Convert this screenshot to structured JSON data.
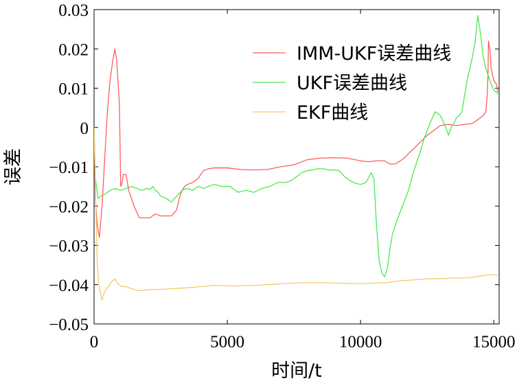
{
  "chart_data": {
    "type": "line",
    "title": "",
    "xlabel": "时间/t",
    "ylabel": "误差",
    "xlim": [
      0,
      15200
    ],
    "ylim": [
      -0.05,
      0.03
    ],
    "xticks": [
      0,
      5000,
      10000,
      15000
    ],
    "xtick_labels": [
      "0",
      "5000",
      "10000",
      "15000"
    ],
    "yticks": [
      0.03,
      0.02,
      0.01,
      0,
      -0.01,
      -0.02,
      -0.03,
      -0.04,
      -0.05
    ],
    "ytick_labels": [
      "0.03",
      "0.02",
      "0.01",
      "0",
      "−0.01",
      "−0.02",
      "−0.03",
      "−0.04",
      "−0.05"
    ],
    "grid": false,
    "legend_position": "top-right",
    "series": [
      {
        "name": "IMM-UKF误差曲线",
        "color": "#ff5b5b",
        "x": [
          0,
          50,
          120,
          200,
          300,
          400,
          500,
          600,
          700,
          780,
          850,
          950,
          1000,
          1050,
          1100,
          1200,
          1300,
          1500,
          1700,
          1900,
          2100,
          2300,
          2500,
          2700,
          2900,
          3100,
          3200,
          3300,
          3400,
          3500,
          3700,
          3900,
          4100,
          4300,
          4500,
          5000,
          5500,
          6000,
          6500,
          7000,
          7500,
          8000,
          8500,
          9000,
          9500,
          10000,
          10300,
          10600,
          10900,
          11100,
          11300,
          11600,
          11900,
          12200,
          12500,
          12800,
          13000,
          13300,
          13600,
          13900,
          14200,
          14400,
          14600,
          14700,
          14750,
          14780,
          14800,
          14850,
          14900,
          15000,
          15100,
          15150
        ],
        "y": [
          0.0,
          -0.018,
          -0.025,
          -0.028,
          -0.02,
          -0.008,
          0.004,
          0.012,
          0.017,
          0.02,
          0.017,
          0.006,
          -0.015,
          -0.014,
          -0.012,
          -0.012,
          -0.016,
          -0.02,
          -0.023,
          -0.023,
          -0.023,
          -0.022,
          -0.0225,
          -0.0225,
          -0.0225,
          -0.021,
          -0.018,
          -0.016,
          -0.015,
          -0.0145,
          -0.014,
          -0.013,
          -0.011,
          -0.0105,
          -0.0103,
          -0.0103,
          -0.0107,
          -0.0108,
          -0.0107,
          -0.01,
          -0.0095,
          -0.0082,
          -0.0078,
          -0.0077,
          -0.0078,
          -0.0085,
          -0.0087,
          -0.0085,
          -0.0085,
          -0.0093,
          -0.0093,
          -0.008,
          -0.006,
          -0.004,
          -0.002,
          -0.0005,
          0.0005,
          0.0008,
          0.0005,
          0.0008,
          0.001,
          0.002,
          0.003,
          0.004,
          0.008,
          0.013,
          0.022,
          0.02,
          0.015,
          0.012,
          0.011,
          0.009
        ]
      },
      {
        "name": "UKF误差曲线",
        "color": "#4ce84c",
        "x": [
          0,
          50,
          150,
          250,
          400,
          600,
          800,
          1000,
          1200,
          1400,
          1600,
          1800,
          2000,
          2100,
          2200,
          2300,
          2400,
          2500,
          2700,
          2900,
          3100,
          3300,
          3500,
          3700,
          3900,
          4100,
          4300,
          4500,
          4800,
          5100,
          5400,
          5700,
          6000,
          6300,
          6600,
          6900,
          7200,
          7400,
          7600,
          7800,
          8000,
          8200,
          8400,
          8600,
          8800,
          9000,
          9200,
          9400,
          9600,
          9800,
          10000,
          10200,
          10400,
          10500,
          10600,
          10700,
          10800,
          10900,
          11000,
          11100,
          11200,
          11400,
          11600,
          11800,
          12000,
          12200,
          12400,
          12600,
          12800,
          13000,
          13200,
          13300,
          13400,
          13500,
          13600,
          13700,
          13800,
          13900,
          14000,
          14100,
          14200,
          14300,
          14400,
          14500,
          14600,
          14700,
          14800,
          14900,
          15000,
          15100,
          15150
        ],
        "y": [
          0.0,
          -0.013,
          -0.018,
          -0.0175,
          -0.017,
          -0.016,
          -0.0155,
          -0.016,
          -0.0155,
          -0.015,
          -0.0155,
          -0.016,
          -0.0155,
          -0.0158,
          -0.015,
          -0.016,
          -0.0165,
          -0.0175,
          -0.018,
          -0.019,
          -0.0175,
          -0.016,
          -0.0155,
          -0.016,
          -0.015,
          -0.0155,
          -0.015,
          -0.0145,
          -0.015,
          -0.015,
          -0.0165,
          -0.016,
          -0.0165,
          -0.0155,
          -0.015,
          -0.014,
          -0.014,
          -0.0135,
          -0.0125,
          -0.0115,
          -0.011,
          -0.0108,
          -0.0105,
          -0.0105,
          -0.0108,
          -0.0108,
          -0.011,
          -0.0125,
          -0.0135,
          -0.0142,
          -0.0145,
          -0.014,
          -0.0115,
          -0.013,
          -0.025,
          -0.034,
          -0.037,
          -0.038,
          -0.036,
          -0.031,
          -0.027,
          -0.023,
          -0.0195,
          -0.016,
          -0.011,
          -0.007,
          -0.0025,
          0.001,
          0.004,
          0.003,
          0.0,
          -0.002,
          0.0,
          0.001,
          0.0025,
          0.003,
          0.004,
          0.008,
          0.012,
          0.015,
          0.018,
          0.022,
          0.0285,
          0.024,
          0.018,
          0.015,
          0.013,
          0.011,
          0.0095,
          0.009,
          0.0085
        ]
      },
      {
        "name": "EKF曲线",
        "color": "#f7c86b",
        "x": [
          0,
          60,
          120,
          180,
          240,
          300,
          380,
          460,
          540,
          620,
          700,
          780,
          860,
          940,
          1050,
          1200,
          1400,
          1600,
          1800,
          2000,
          2500,
          3000,
          3500,
          4000,
          4500,
          5000,
          5500,
          6000,
          6500,
          7000,
          7500,
          8000,
          8500,
          9000,
          9500,
          10000,
          10500,
          11000,
          11500,
          12000,
          12500,
          13000,
          13500,
          14000,
          14500,
          14800,
          15000,
          15150
        ],
        "y": [
          0.0,
          -0.018,
          -0.035,
          -0.04,
          -0.042,
          -0.044,
          -0.042,
          -0.041,
          -0.0405,
          -0.0395,
          -0.039,
          -0.0385,
          -0.0395,
          -0.04,
          -0.0405,
          -0.0405,
          -0.041,
          -0.0415,
          -0.0415,
          -0.0413,
          -0.0412,
          -0.041,
          -0.0408,
          -0.0405,
          -0.0402,
          -0.0403,
          -0.0403,
          -0.0402,
          -0.04,
          -0.0398,
          -0.0396,
          -0.0395,
          -0.0395,
          -0.0396,
          -0.0397,
          -0.0398,
          -0.0396,
          -0.0395,
          -0.039,
          -0.0388,
          -0.0385,
          -0.0385,
          -0.0383,
          -0.0383,
          -0.0378,
          -0.0375,
          -0.0375,
          -0.0377
        ]
      }
    ]
  }
}
